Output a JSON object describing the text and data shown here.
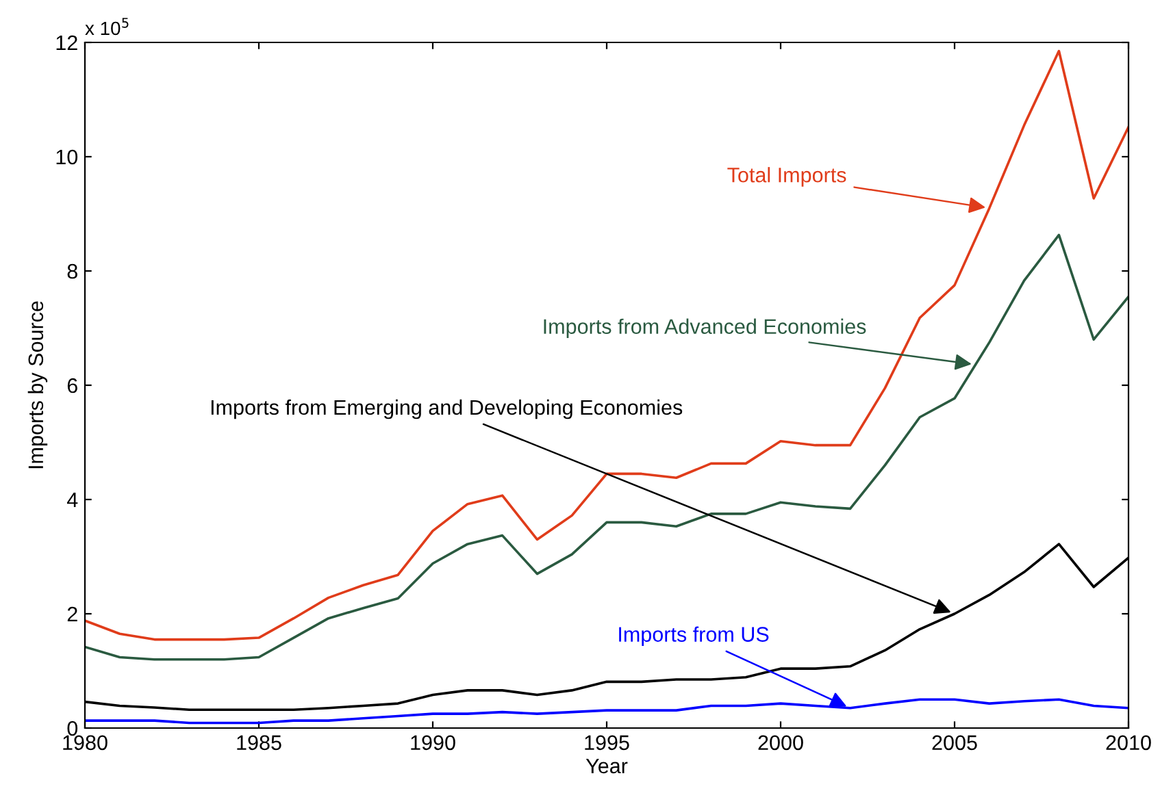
{
  "chart_data": {
    "type": "line",
    "xlabel": "Year",
    "ylabel": "Imports by Source",
    "x": [
      1980,
      1981,
      1982,
      1983,
      1984,
      1985,
      1986,
      1987,
      1988,
      1989,
      1990,
      1991,
      1992,
      1993,
      1994,
      1995,
      1996,
      1997,
      1998,
      1999,
      2000,
      2001,
      2002,
      2003,
      2004,
      2005,
      2006,
      2007,
      2008,
      2009,
      2010
    ],
    "series": [
      {
        "color": "#e03c1a",
        "values": [
          1.88,
          1.65,
          1.55,
          1.55,
          1.55,
          1.58,
          1.92,
          2.28,
          2.5,
          2.68,
          3.45,
          3.92,
          4.07,
          3.3,
          3.72,
          4.45,
          4.45,
          4.38,
          4.63,
          4.63,
          5.02,
          4.95,
          4.95,
          5.95,
          7.18,
          7.75,
          9.1,
          10.55,
          11.85,
          9.27,
          10.52
        ]
      },
      {
        "color": "#2a5a40",
        "values": [
          1.42,
          1.24,
          1.2,
          1.2,
          1.2,
          1.24,
          1.58,
          1.92,
          2.1,
          2.27,
          2.88,
          3.22,
          3.37,
          2.7,
          3.04,
          3.6,
          3.6,
          3.53,
          3.75,
          3.75,
          3.95,
          3.88,
          3.84,
          4.6,
          5.44,
          5.77,
          6.75,
          7.83,
          8.63,
          6.8,
          7.55
        ]
      },
      {
        "color": "#000000",
        "values": [
          0.46,
          0.39,
          0.36,
          0.32,
          0.32,
          0.32,
          0.32,
          0.35,
          0.39,
          0.43,
          0.58,
          0.66,
          0.66,
          0.58,
          0.66,
          0.81,
          0.81,
          0.85,
          0.85,
          0.89,
          1.04,
          1.04,
          1.08,
          1.36,
          1.73,
          2.0,
          2.33,
          2.73,
          3.22,
          2.47,
          2.98
        ]
      },
      {
        "color": "#0000ff",
        "values": [
          0.13,
          0.13,
          0.13,
          0.09,
          0.09,
          0.09,
          0.13,
          0.13,
          0.17,
          0.21,
          0.25,
          0.25,
          0.28,
          0.25,
          0.28,
          0.31,
          0.31,
          0.31,
          0.39,
          0.39,
          0.43,
          0.39,
          0.35,
          0.43,
          0.5,
          0.5,
          0.43,
          0.47,
          0.5,
          0.39,
          0.35
        ]
      }
    ],
    "annotations": [
      "x 10$^{5}$",
      {
        "text": "Total Imports",
        "x": 2006,
        "y": 9.1
      },
      {
        "text": "Imports from Advanced Economies",
        "x": 2005.6,
        "y": 6.36
      },
      {
        "text": "Imports from Emerging and Developing Economies",
        "x": 2005,
        "y": 2.0
      },
      {
        "text": "Imports from US",
        "x": 2002,
        "y": 0.35
      }
    ],
    "xlim": [
      1980,
      2010
    ],
    "xticks": [
      1980,
      1985,
      1990,
      1995,
      2000,
      2005,
      2010
    ],
    "ylim": [
      0,
      12
    ],
    "yticks": [
      0,
      2,
      4,
      6,
      8,
      10,
      12
    ],
    "grid": false,
    "legend": false,
    "marker": "none",
    "line_style": "solid"
  }
}
